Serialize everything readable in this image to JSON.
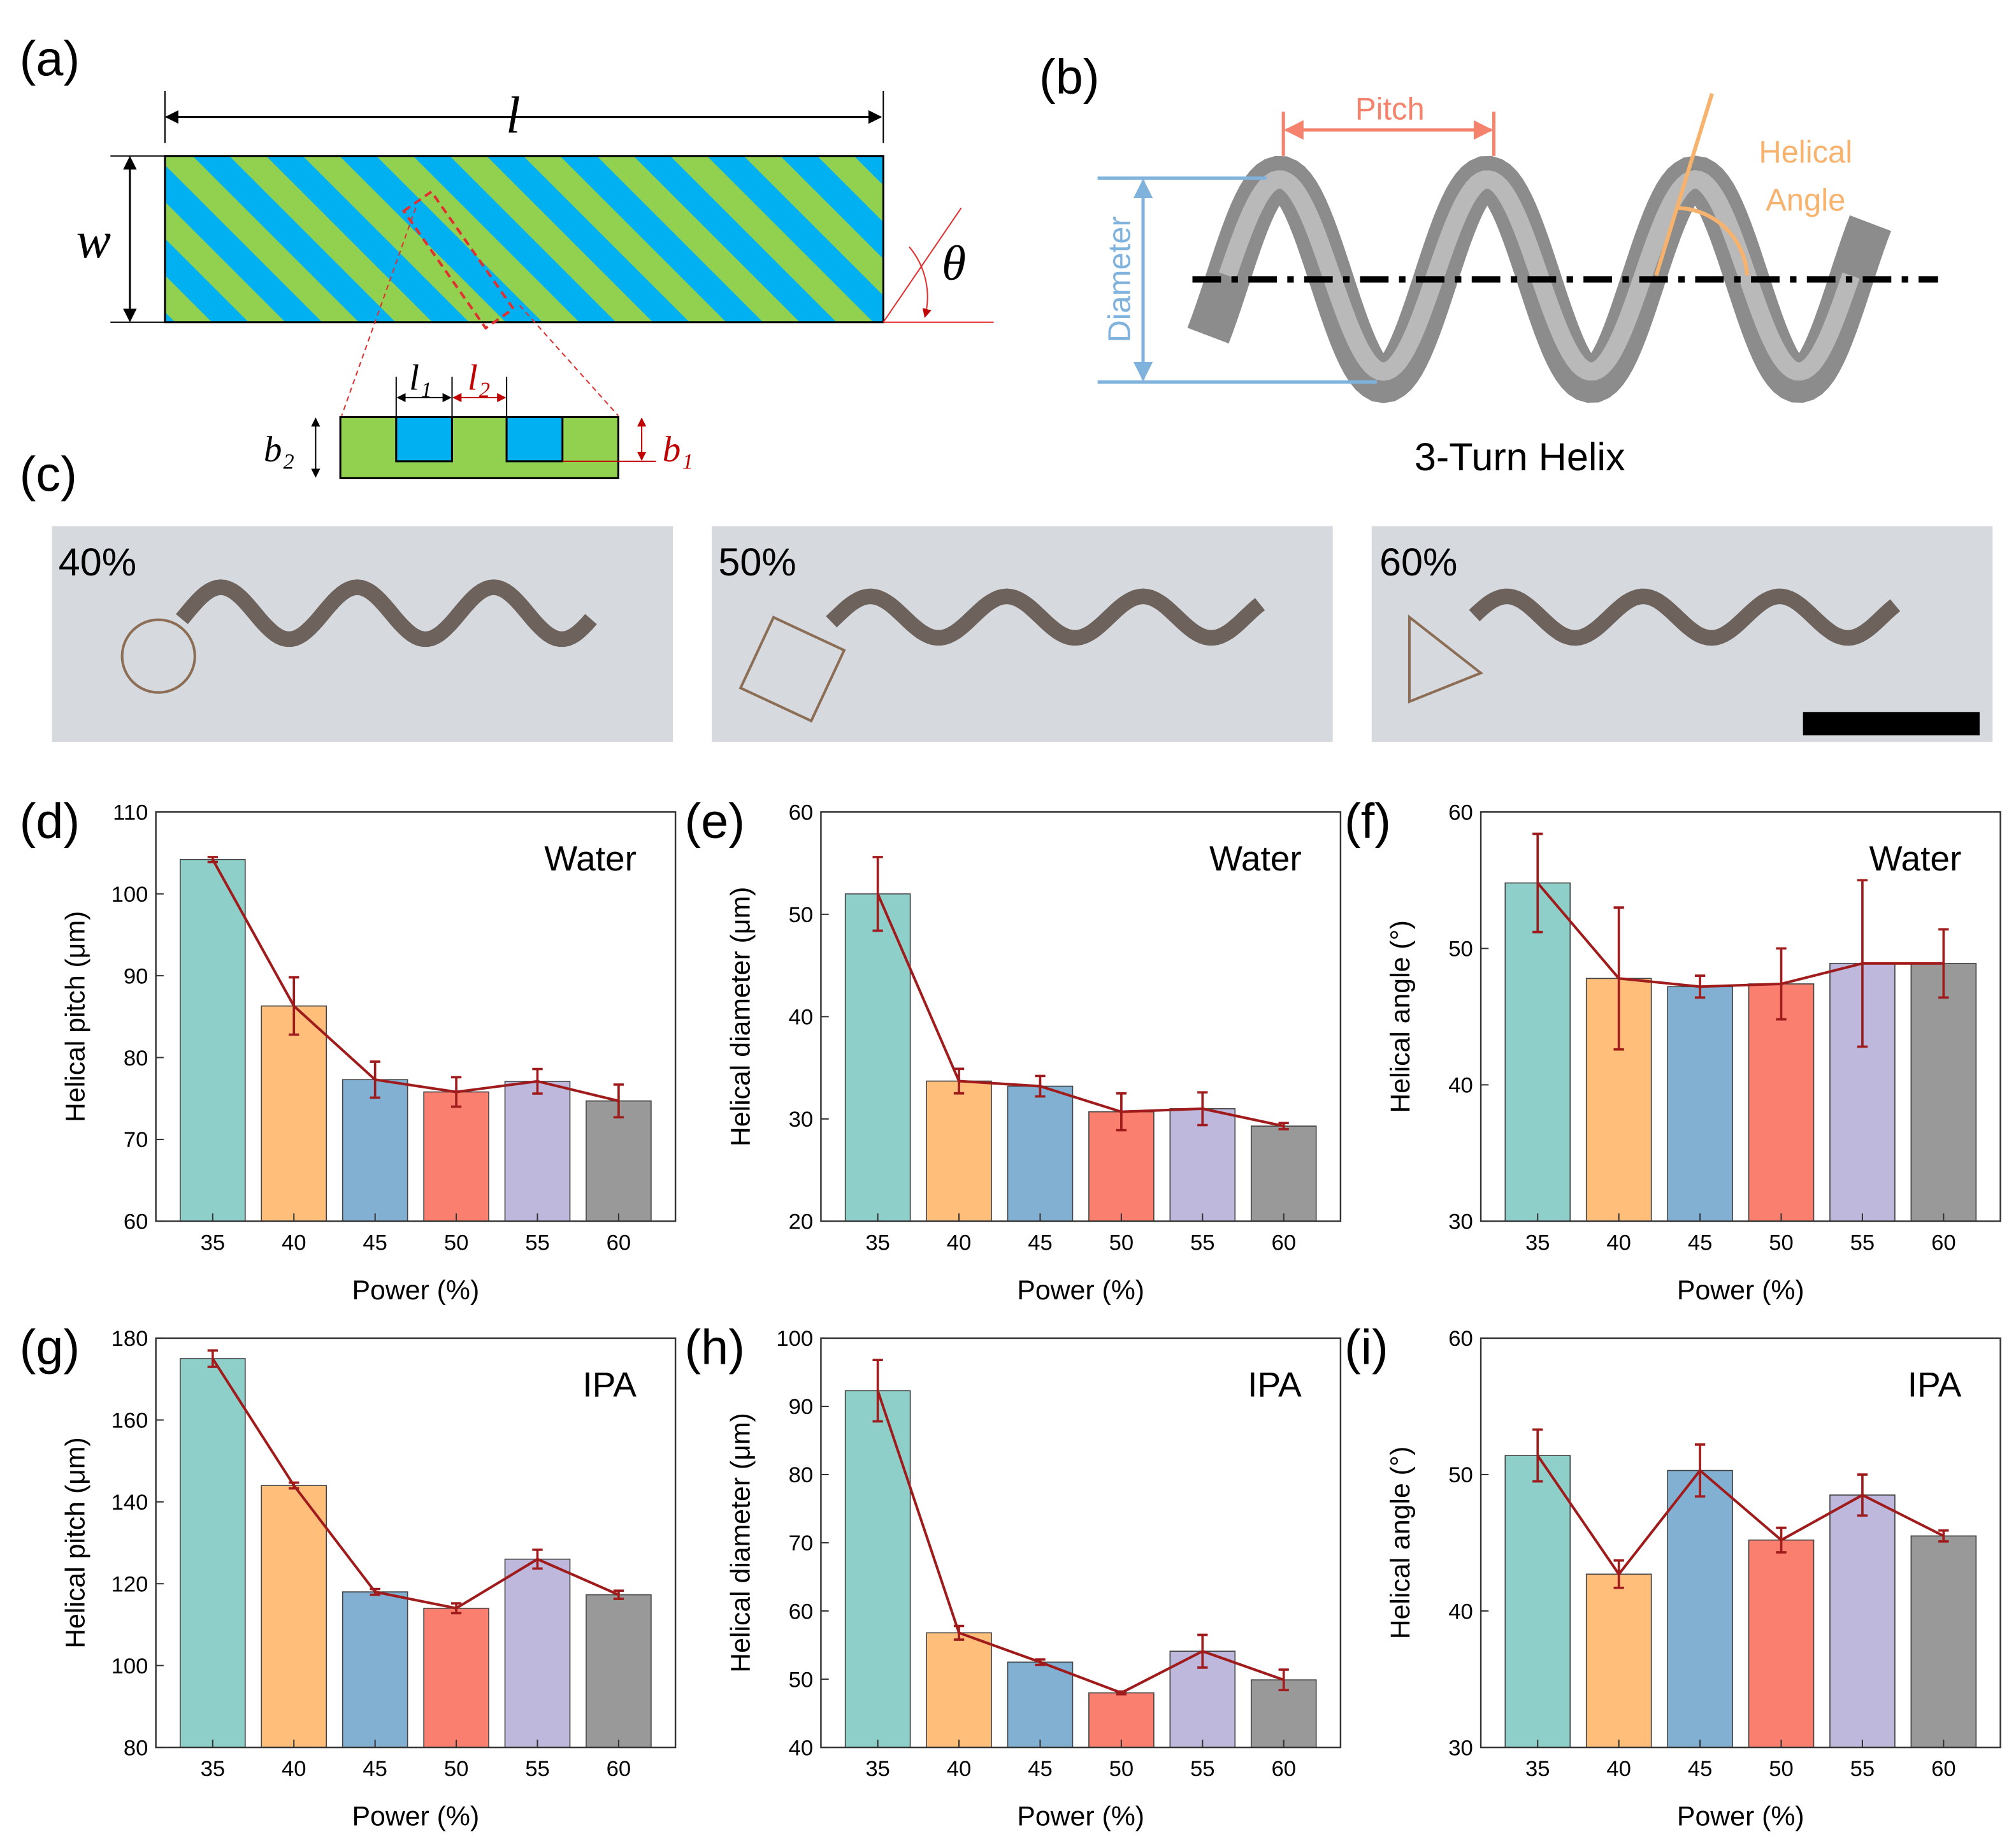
{
  "panels": {
    "a": "(a)",
    "b": "(b)",
    "c": "(c)"
  },
  "diagram_a": {
    "length": "l",
    "width": "w",
    "angle": "θ",
    "l1": "l₁",
    "l2": "l₂",
    "b2": "b₂",
    "b1": "b₁"
  },
  "diagram_b": {
    "pitch": "Pitch",
    "angle_line1": "Helical",
    "angle_line2": "Angle",
    "diameter": "Diameter",
    "caption": "3-Turn Helix"
  },
  "images_c": [
    "40%",
    "50%",
    "60%"
  ],
  "chart_data": [
    {
      "type": "bar",
      "panel": "(d)",
      "annotation": "Water",
      "xlabel": "Power (%)",
      "ylabel": "Helical pitch (μm)",
      "categories": [
        "35",
        "40",
        "45",
        "50",
        "55",
        "60"
      ],
      "values": [
        104.2,
        86.3,
        77.3,
        75.8,
        77.1,
        74.7
      ],
      "errors": [
        0.3,
        3.5,
        2.2,
        1.8,
        1.5,
        2.0
      ],
      "colors": [
        "#8ecfc9",
        "#ffbe7a",
        "#82b0d2",
        "#fa7f6f",
        "#beb8dc",
        "#999999"
      ],
      "line_color": "#a01c1c",
      "ylim": [
        60,
        110
      ],
      "yticks": [
        60,
        70,
        80,
        90,
        100,
        110
      ]
    },
    {
      "type": "bar",
      "panel": "(e)",
      "annotation": "Water",
      "xlabel": "Power (%)",
      "ylabel": "Helical diameter (μm)",
      "categories": [
        "35",
        "40",
        "45",
        "50",
        "55",
        "60"
      ],
      "values": [
        52,
        33.7,
        33.2,
        30.7,
        31,
        29.3
      ],
      "errors": [
        3.6,
        1.2,
        1.0,
        1.8,
        1.6,
        0.3
      ],
      "colors": [
        "#8ecfc9",
        "#ffbe7a",
        "#82b0d2",
        "#fa7f6f",
        "#beb8dc",
        "#999999"
      ],
      "line_color": "#a01c1c",
      "ylim": [
        20,
        60
      ],
      "yticks": [
        20,
        30,
        40,
        50,
        60
      ]
    },
    {
      "type": "bar",
      "panel": "(f)",
      "annotation": "Water",
      "xlabel": "Power (%)",
      "ylabel": "Helical angle (°)",
      "categories": [
        "35",
        "40",
        "45",
        "50",
        "55",
        "60"
      ],
      "values": [
        54.8,
        47.8,
        47.2,
        47.4,
        48.9,
        48.9
      ],
      "errors": [
        3.6,
        5.2,
        0.8,
        2.6,
        6.1,
        2.5
      ],
      "colors": [
        "#8ecfc9",
        "#ffbe7a",
        "#82b0d2",
        "#fa7f6f",
        "#beb8dc",
        "#999999"
      ],
      "line_color": "#a01c1c",
      "ylim": [
        30,
        60
      ],
      "yticks": [
        30,
        40,
        50,
        60
      ]
    },
    {
      "type": "bar",
      "panel": "(g)",
      "annotation": "IPA",
      "xlabel": "Power (%)",
      "ylabel": "Helical pitch (μm)",
      "categories": [
        "35",
        "40",
        "45",
        "50",
        "55",
        "60"
      ],
      "values": [
        175,
        144,
        118,
        114,
        126,
        117.3
      ],
      "errors": [
        2,
        0.7,
        0.7,
        1.2,
        2.3,
        1.0
      ],
      "colors": [
        "#8ecfc9",
        "#ffbe7a",
        "#82b0d2",
        "#fa7f6f",
        "#beb8dc",
        "#999999"
      ],
      "line_color": "#a01c1c",
      "ylim": [
        80,
        180
      ],
      "yticks": [
        80,
        100,
        120,
        140,
        160,
        180
      ]
    },
    {
      "type": "bar",
      "panel": "(h)",
      "annotation": "IPA",
      "xlabel": "Power (%)",
      "ylabel": "Helical diameter (μm)",
      "categories": [
        "35",
        "40",
        "45",
        "50",
        "55",
        "60"
      ],
      "values": [
        92.3,
        56.8,
        52.5,
        48,
        54.1,
        49.9
      ],
      "errors": [
        4.5,
        1.0,
        0.4,
        0.2,
        2.4,
        1.5
      ],
      "colors": [
        "#8ecfc9",
        "#ffbe7a",
        "#82b0d2",
        "#fa7f6f",
        "#beb8dc",
        "#999999"
      ],
      "line_color": "#a01c1c",
      "ylim": [
        40,
        100
      ],
      "yticks": [
        40,
        50,
        60,
        70,
        80,
        90,
        100
      ]
    },
    {
      "type": "bar",
      "panel": "(i)",
      "annotation": "IPA",
      "xlabel": "Power (%)",
      "ylabel": "Helical angle (°)",
      "categories": [
        "35",
        "40",
        "45",
        "50",
        "55",
        "60"
      ],
      "values": [
        51.4,
        42.7,
        50.3,
        45.2,
        48.5,
        45.5
      ],
      "errors": [
        1.9,
        1.0,
        1.9,
        0.9,
        1.5,
        0.4
      ],
      "colors": [
        "#8ecfc9",
        "#ffbe7a",
        "#82b0d2",
        "#fa7f6f",
        "#beb8dc",
        "#999999"
      ],
      "line_color": "#a01c1c",
      "ylim": [
        30,
        60
      ],
      "yticks": [
        30,
        40,
        50,
        60
      ]
    }
  ]
}
